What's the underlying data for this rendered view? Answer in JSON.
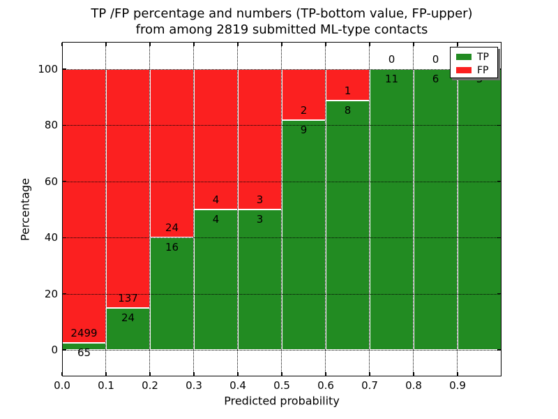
{
  "title": {
    "line1": "TP /FP percentage and numbers (TP-bottom value, FP-upper)",
    "line2": "from among 2819 submitted ML-type contacts"
  },
  "axes": {
    "xlabel": "Predicted probability",
    "ylabel": "Percentage",
    "x_tick_labels": [
      "0.0",
      "0.1",
      "0.2",
      "0.3",
      "0.4",
      "0.5",
      "0.6",
      "0.7",
      "0.8",
      "0.9"
    ],
    "y_tick_labels": [
      "0",
      "20",
      "40",
      "60",
      "80",
      "100"
    ]
  },
  "legend": {
    "entries": [
      {
        "label": "TP",
        "color": "#228b22"
      },
      {
        "label": "FP",
        "color": "#fb2020"
      }
    ]
  },
  "chart_data": {
    "type": "bar",
    "stacked": true,
    "normalized_to_percent": true,
    "title": "TP /FP percentage and numbers (TP-bottom value, FP-upper)\nfrom among 2819 submitted ML-type contacts",
    "xlabel": "Predicted probability",
    "ylabel": "Percentage",
    "total_contacts": 2819,
    "bin_width": 0.1,
    "categories": [
      "0.0-0.1",
      "0.1-0.2",
      "0.2-0.3",
      "0.3-0.4",
      "0.4-0.5",
      "0.5-0.6",
      "0.6-0.7",
      "0.7-0.8",
      "0.8-0.9",
      "0.9-1.0"
    ],
    "series": [
      {
        "name": "TP",
        "color": "#228b22",
        "counts": [
          65,
          24,
          16,
          4,
          3,
          9,
          8,
          11,
          6,
          3
        ],
        "percent_of_bin": [
          2.5,
          14.9,
          40.0,
          50.0,
          50.0,
          81.8,
          88.9,
          100.0,
          100.0,
          100.0
        ]
      },
      {
        "name": "FP",
        "color": "#fb2020",
        "counts": [
          2499,
          137,
          24,
          4,
          3,
          2,
          1,
          0,
          0,
          0
        ],
        "percent_of_bin": [
          97.5,
          85.1,
          60.0,
          50.0,
          50.0,
          18.2,
          11.1,
          0.0,
          0.0,
          0.0
        ]
      }
    ],
    "x_ticks": [
      0.0,
      0.1,
      0.2,
      0.3,
      0.4,
      0.5,
      0.6,
      0.7,
      0.8,
      0.9
    ],
    "y_ticks": [
      0,
      20,
      40,
      60,
      80,
      100
    ],
    "xlim": [
      0.0,
      1.0
    ],
    "ylim": [
      -9.5,
      110
    ],
    "grid": "dotted black, horizontal at y ticks and vertical at x ticks, drawn above bars",
    "legend_position": "upper right",
    "annotation_rule": "TP count placed just below segment boundary, FP count just above"
  }
}
